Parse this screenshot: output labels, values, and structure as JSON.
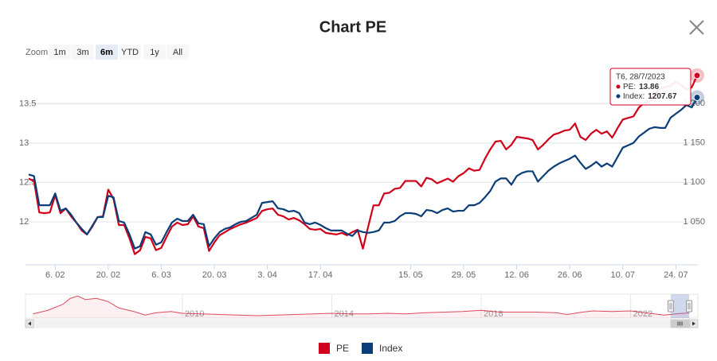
{
  "chart_data": {
    "type": "line",
    "title": "Chart PE",
    "zoom": {
      "label": "Zoom",
      "buttons": [
        "1m",
        "3m",
        "6m",
        "YTD",
        "1y",
        "All"
      ],
      "selected": 2
    },
    "categories": [
      null,
      null,
      null,
      null,
      null,
      "6. 02",
      null,
      null,
      null,
      null,
      null,
      null,
      null,
      null,
      null,
      "20. 02",
      null,
      null,
      null,
      null,
      null,
      null,
      null,
      null,
      null,
      "6. 03",
      null,
      null,
      null,
      null,
      null,
      null,
      null,
      null,
      null,
      "20. 03",
      null,
      null,
      null,
      null,
      null,
      null,
      null,
      null,
      null,
      "3. 04",
      null,
      null,
      null,
      null,
      null,
      null,
      null,
      null,
      null,
      "17. 04",
      null,
      null,
      null,
      null,
      null,
      null,
      null,
      null,
      null,
      null,
      null,
      null,
      null,
      null,
      null,
      null,
      "15. 05",
      null,
      null,
      null,
      null,
      null,
      null,
      null,
      null,
      null,
      "29. 05",
      null,
      null,
      null,
      null,
      null,
      null,
      null,
      null,
      null,
      "12. 06",
      null,
      null,
      null,
      null,
      null,
      null,
      null,
      null,
      null,
      "26. 06",
      null,
      null,
      null,
      null,
      null,
      null,
      null,
      null,
      null,
      "10. 07",
      null,
      null,
      null,
      null,
      null,
      null,
      null,
      null,
      null,
      "24. 07",
      null,
      null,
      null,
      null
    ],
    "series": [
      {
        "name": "PE",
        "color": "#d0021b",
        "axis": "y",
        "values": [
          12.55,
          12.52,
          12.12,
          12.11,
          12.12,
          12.34,
          12.11,
          12.17,
          12.07,
          11.99,
          11.89,
          11.84,
          11.94,
          12.06,
          12.07,
          12.41,
          12.29,
          11.96,
          11.96,
          11.79,
          11.59,
          11.64,
          11.81,
          11.79,
          11.64,
          11.67,
          11.81,
          11.94,
          11.99,
          11.96,
          11.97,
          12.07,
          11.94,
          11.92,
          11.63,
          11.74,
          11.83,
          11.87,
          11.91,
          11.94,
          11.97,
          11.99,
          12.02,
          12.05,
          12.14,
          12.16,
          12.17,
          12.09,
          12.07,
          12.03,
          12.05,
          12.02,
          11.97,
          11.91,
          11.9,
          11.91,
          11.86,
          11.85,
          11.84,
          11.86,
          11.83,
          11.87,
          11.9,
          11.66,
          11.94,
          12.21,
          12.21,
          12.36,
          12.37,
          12.42,
          12.43,
          12.52,
          12.52,
          12.52,
          12.45,
          12.56,
          12.54,
          12.49,
          12.52,
          12.55,
          12.51,
          12.58,
          12.62,
          12.68,
          12.65,
          12.66,
          12.8,
          12.92,
          13.02,
          13.03,
          12.92,
          12.98,
          13.08,
          13.07,
          13.06,
          13.04,
          12.92,
          12.98,
          13.05,
          13.11,
          13.13,
          13.16,
          13.17,
          13.25,
          13.08,
          13.04,
          13.12,
          13.17,
          13.12,
          13.15,
          13.07,
          13.19,
          13.3,
          13.32,
          13.34,
          13.45,
          13.51,
          13.53,
          13.63,
          13.69,
          13.71,
          13.73,
          13.78,
          13.74,
          13.68,
          13.71,
          13.86
        ]
      },
      {
        "name": "Index",
        "color": "#0b3d78",
        "axis": "y2",
        "values": [
          1110,
          1108,
          1071,
          1071,
          1071,
          1086,
          1064,
          1067,
          1059,
          1049,
          1041,
          1034,
          1045,
          1056,
          1056,
          1083,
          1081,
          1051,
          1049,
          1034,
          1016,
          1019,
          1037,
          1034,
          1021,
          1024,
          1037,
          1049,
          1054,
          1051,
          1051,
          1059,
          1048,
          1047,
          1019,
          1029,
          1037,
          1041,
          1043,
          1047,
          1050,
          1051,
          1055,
          1059,
          1074,
          1075,
          1076,
          1067,
          1066,
          1063,
          1064,
          1061,
          1049,
          1047,
          1049,
          1046,
          1042,
          1039,
          1039,
          1039,
          1035,
          1032,
          1039,
          1037,
          1036,
          1037,
          1039,
          1049,
          1049,
          1051,
          1057,
          1061,
          1061,
          1060,
          1057,
          1065,
          1064,
          1061,
          1065,
          1067,
          1063,
          1064,
          1064,
          1071,
          1071,
          1074,
          1081,
          1089,
          1101,
          1105,
          1105,
          1097,
          1108,
          1112,
          1114,
          1114,
          1101,
          1108,
          1115,
          1120,
          1124,
          1127,
          1130,
          1134,
          1125,
          1117,
          1121,
          1126,
          1120,
          1124,
          1120,
          1132,
          1144,
          1147,
          1150,
          1158,
          1163,
          1168,
          1170,
          1169,
          1169,
          1182,
          1187,
          1192,
          1198,
          1195,
          1207.67
        ]
      }
    ],
    "ylim": [
      11.455,
      13.96
    ],
    "yticks": [
      12,
      12.5,
      13,
      13.5
    ],
    "y2lim": [
      995.5,
      1245.5
    ],
    "y2ticks": [
      {
        "value": 1050,
        "label": "1 050"
      },
      {
        "value": 1100,
        "label": "1 100"
      },
      {
        "value": 1150,
        "label": "1 150"
      },
      {
        "value": 1200,
        "label": "1 200"
      }
    ],
    "grid": true,
    "legend": "bottom",
    "tooltip": {
      "header": "T6, 28/7/2023",
      "labels": [
        "PE:",
        "Index:"
      ]
    },
    "navigator": {
      "x": [
        2006.0,
        2006.4,
        2006.8,
        2007.0,
        2007.2,
        2007.4,
        2007.7,
        2008.0,
        2008.3,
        2008.7,
        2009.0,
        2009.3,
        2009.7,
        2010.0,
        2010.5,
        2011.0,
        2011.5,
        2012.0,
        2012.5,
        2013.0,
        2013.5,
        2014.0,
        2014.5,
        2015.0,
        2015.5,
        2016.0,
        2016.5,
        2017.0,
        2017.5,
        2018.0,
        2018.5,
        2019.0,
        2019.5,
        2020.0,
        2020.3,
        2020.7,
        2021.0,
        2021.5,
        2022.0,
        2022.5,
        2022.9,
        2023.2,
        2023.57
      ],
      "values": [
        12,
        18,
        28,
        38,
        42,
        36,
        38,
        33,
        22,
        16,
        10,
        14,
        16,
        13,
        12,
        11,
        10,
        9,
        10,
        11,
        12,
        13,
        12,
        12,
        13,
        12,
        14,
        15,
        16,
        18,
        15,
        15,
        15,
        14,
        11,
        15,
        17,
        16,
        17,
        13,
        10,
        12,
        13.86
      ],
      "xlim": [
        2005.8,
        2023.8
      ],
      "ylim": [
        5,
        45
      ],
      "xticks": [
        2010,
        2014,
        2018,
        2022
      ]
    }
  }
}
